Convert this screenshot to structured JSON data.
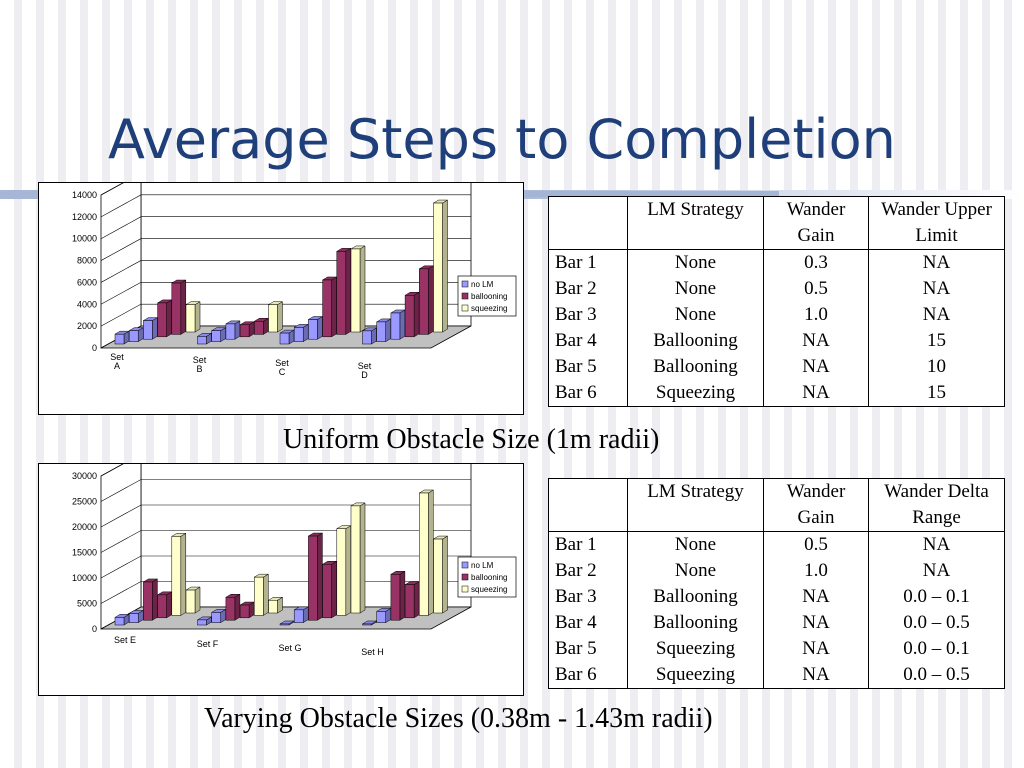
{
  "slide": {
    "title": "Average Steps to Completion",
    "caption_top": "Uniform Obstacle Size (1m radii)",
    "caption_bottom": "Varying Obstacle Sizes (0.38m - 1.43m radii)"
  },
  "colors": {
    "title": "#1f3f7a",
    "no_lm": "#9999ff",
    "ballooning": "#993366",
    "squeezing": "#ffffcc",
    "floor": "#c0c0c0"
  },
  "table_top": {
    "headers": [
      "",
      "LM Strategy",
      "Wander Gain",
      "Wander Upper Limit"
    ],
    "rows": [
      [
        "Bar 1",
        "None",
        "0.3",
        "NA"
      ],
      [
        "Bar 2",
        "None",
        "0.5",
        "NA"
      ],
      [
        "Bar 3",
        "None",
        "1.0",
        "NA"
      ],
      [
        "Bar 4",
        "Ballooning",
        "NA",
        "15"
      ],
      [
        "Bar 5",
        "Ballooning",
        "NA",
        "10"
      ],
      [
        "Bar 6",
        "Squeezing",
        "NA",
        "15"
      ]
    ]
  },
  "table_bottom": {
    "headers": [
      "",
      "LM Strategy",
      "Wander Gain",
      "Wander Delta Range"
    ],
    "rows": [
      [
        "Bar 1",
        "None",
        "0.5",
        "NA"
      ],
      [
        "Bar 2",
        "None",
        "1.0",
        "NA"
      ],
      [
        "Bar 3",
        "Ballooning",
        "NA",
        "0.0 – 0.1"
      ],
      [
        "Bar 4",
        "Ballooning",
        "NA",
        "0.0 – 0.5"
      ],
      [
        "Bar 5",
        "Squeezing",
        "NA",
        "0.0 – 0.1"
      ],
      [
        "Bar 6",
        "Squeezing",
        "NA",
        "0.0 – 0.5"
      ]
    ]
  },
  "chart_data": [
    {
      "type": "bar",
      "title": "",
      "xlabel": "",
      "ylabel": "",
      "ylim": [
        0,
        14000
      ],
      "yticks": [
        "0",
        "2000",
        "4000",
        "6000",
        "8000",
        "10000",
        "12000",
        "14000"
      ],
      "categories": [
        "Set A",
        "Set B",
        "Set C",
        "Set D"
      ],
      "series_order": [
        "no LM",
        "no LM",
        "no LM",
        "ballooning",
        "ballooning",
        "squeezing"
      ],
      "legend": [
        "no LM",
        "ballooning",
        "squeezing"
      ],
      "legend_position": "right",
      "values": [
        [
          900,
          1000,
          1700,
          3100,
          4700,
          2500
        ],
        [
          700,
          1000,
          1400,
          1100,
          1200,
          2500
        ],
        [
          1000,
          1300,
          1800,
          5200,
          7600,
          7600
        ],
        [
          1200,
          1800,
          2400,
          3800,
          6000,
          11800
        ]
      ]
    },
    {
      "type": "bar",
      "title": "",
      "xlabel": "",
      "ylabel": "",
      "ylim": [
        0,
        30000
      ],
      "yticks": [
        "0",
        "5000",
        "10000",
        "15000",
        "20000",
        "25000",
        "30000"
      ],
      "categories": [
        "Set E",
        "Set F",
        "Set G",
        "Set H"
      ],
      "series_order": [
        "no LM",
        "no LM",
        "ballooning",
        "ballooning",
        "squeezing",
        "squeezing"
      ],
      "legend": [
        "no LM",
        "ballooning",
        "squeezing"
      ],
      "legend_position": "right",
      "values": [
        [
          1500,
          1800,
          7500,
          4500,
          15500,
          4500
        ],
        [
          1000,
          2000,
          4500,
          2500,
          7500,
          2500
        ],
        [
          200,
          2500,
          16500,
          10500,
          17000,
          21000
        ],
        [
          200,
          2200,
          9000,
          6500,
          24000,
          14500
        ]
      ]
    }
  ]
}
